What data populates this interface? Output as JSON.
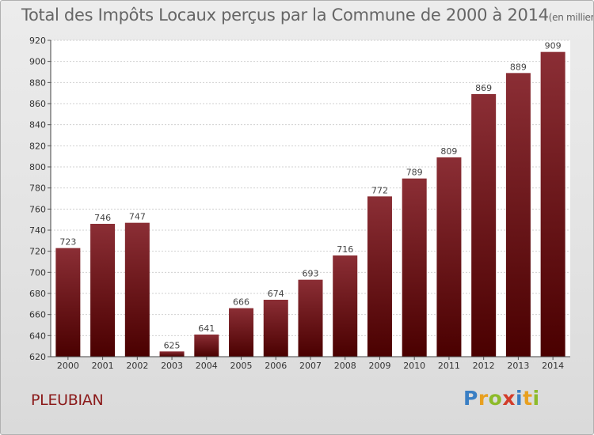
{
  "chart_data": {
    "type": "bar",
    "title": "Total des Impôts Locaux perçus par la Commune de 2000 à 2014",
    "unit_note": "(en milliers d'€)",
    "categories": [
      "2000",
      "2001",
      "2002",
      "2003",
      "2004",
      "2005",
      "2006",
      "2007",
      "2008",
      "2009",
      "2010",
      "2011",
      "2012",
      "2013",
      "2014"
    ],
    "values": [
      723,
      746,
      747,
      625,
      641,
      666,
      674,
      693,
      716,
      772,
      789,
      809,
      869,
      889,
      909
    ],
    "ylim": [
      620,
      920
    ],
    "ytick_step": 20,
    "grid": true,
    "xlabel": "",
    "ylabel": "",
    "bar_color_top": "#8b2e35",
    "bar_color_bottom": "#4a0000"
  },
  "commune": "PLEUBIAN",
  "logo": {
    "letters": [
      "P",
      "r",
      "o",
      "x",
      "i",
      "t",
      "i"
    ],
    "colors": [
      "#3a7fc4",
      "#e8a020",
      "#8dbb2a",
      "#d23c2a",
      "#3a7fc4",
      "#e8a020",
      "#8dbb2a"
    ]
  }
}
